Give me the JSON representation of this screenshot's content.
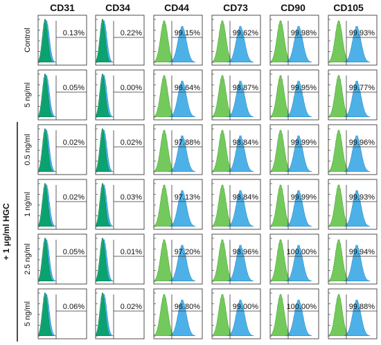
{
  "chart_data": {
    "type": "histogram-grid",
    "columns": [
      "CD31",
      "CD34",
      "CD44",
      "CD73",
      "CD90",
      "CD105"
    ],
    "rows": [
      "Control",
      "5 ng/ml",
      "0.5 ng/ml",
      "1 ng/ml",
      "2.5 ng/ml",
      "5 ng/ml"
    ],
    "group_label": "+ 1 μg/ml HGC",
    "group_rows": [
      2,
      3,
      4,
      5
    ],
    "percentages": [
      [
        "0.13%",
        "0.22%",
        "99.15%",
        "99.62%",
        "99.98%",
        "99.93%"
      ],
      [
        "0.05%",
        "0.00%",
        "96.64%",
        "98.87%",
        "99.95%",
        "99.77%"
      ],
      [
        "0.02%",
        "0.02%",
        "97.88%",
        "98.84%",
        "99.99%",
        "99.96%"
      ],
      [
        "0.02%",
        "0.03%",
        "97.13%",
        "98.84%",
        "99.99%",
        "99.93%"
      ],
      [
        "0.05%",
        "0.01%",
        "97.20%",
        "98.96%",
        "100.00%",
        "99.94%"
      ],
      [
        "0.06%",
        "0.02%",
        "96.80%",
        "99.00%",
        "100.00%",
        "99.88%"
      ]
    ],
    "series": [
      {
        "name": "",
        "color": "#5cbf3f"
      },
      {
        "name": "",
        "color": "#3aa8e6"
      }
    ],
    "negative_marker_color": "#00a05a"
  }
}
